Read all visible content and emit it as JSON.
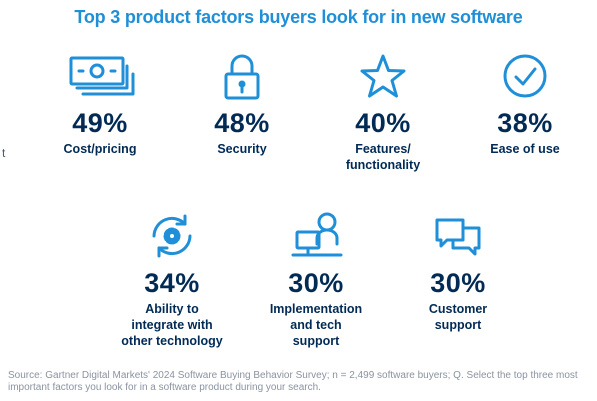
{
  "title": "Top 3 product factors buyers look for in new software",
  "stray_text": "t",
  "factors": [
    {
      "percent": "49%",
      "label": "Cost/pricing",
      "icon": "money-bills-icon"
    },
    {
      "percent": "48%",
      "label": "Security",
      "icon": "padlock-icon"
    },
    {
      "percent": "40%",
      "label": "Features/\nfunctionality",
      "icon": "star-icon"
    },
    {
      "percent": "38%",
      "label": "Ease of use",
      "icon": "check-circle-icon"
    },
    {
      "percent": "34%",
      "label": "Ability to\nintegrate with\nother technology",
      "icon": "gear-refresh-icon"
    },
    {
      "percent": "30%",
      "label": "Implementation\nand tech\nsupport",
      "icon": "person-computer-icon"
    },
    {
      "percent": "30%",
      "label": "Customer\nsupport",
      "icon": "chat-bubbles-icon"
    }
  ],
  "source": "Source: Gartner Digital Markets' 2024 Software Buying Behavior Survey; n = 2,499 software buyers; Q. Select the top three most important factors you look for in a software product during your search.",
  "colors": {
    "accent": "#1f8fd8",
    "text": "#012a55",
    "source": "#8a93a1"
  }
}
